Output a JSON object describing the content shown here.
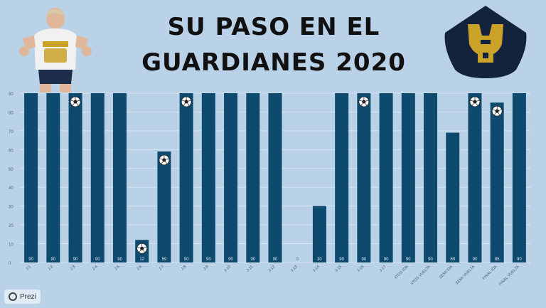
{
  "header": {
    "title_line1": "SU PASO EN EL",
    "title_line2": "GUARDIANES 2020"
  },
  "badge": {
    "label": "Prezi",
    "icon": "prezi-logo-icon"
  },
  "icons": {
    "goal_marker": "soccer-ball-icon",
    "player": "player-photo",
    "club": "pumas-crest-icon"
  },
  "colors": {
    "bar": "#0e4a6e",
    "background": "#b9d2e8",
    "crest_gold": "#c9a227",
    "crest_navy": "#14233d"
  },
  "chart_data": {
    "type": "bar",
    "ylim": [
      0,
      90
    ],
    "yticks": [
      0,
      10,
      20,
      30,
      40,
      50,
      60,
      70,
      80,
      90
    ],
    "grid": true,
    "categories": [
      "J-1",
      "J-2",
      "J-3",
      "J-4",
      "J-5",
      "J-6",
      "J-7",
      "J-8",
      "J-9",
      "J-10",
      "J-11",
      "J-12",
      "J-13",
      "J-14",
      "J-15",
      "J-16",
      "J-17",
      "4TOS IDA",
      "4TOS VUELTA",
      "SEMI IDA",
      "SEMI VUELTA",
      "FINAL IDA",
      "FINAL VUELTA"
    ],
    "values": [
      90,
      90,
      90,
      90,
      90,
      12,
      59,
      90,
      90,
      90,
      90,
      90,
      0,
      30,
      90,
      90,
      90,
      90,
      90,
      69,
      90,
      85,
      90
    ],
    "goals": [
      false,
      false,
      true,
      false,
      false,
      true,
      true,
      true,
      false,
      false,
      false,
      false,
      false,
      false,
      false,
      true,
      false,
      false,
      false,
      false,
      true,
      true,
      false
    ]
  }
}
